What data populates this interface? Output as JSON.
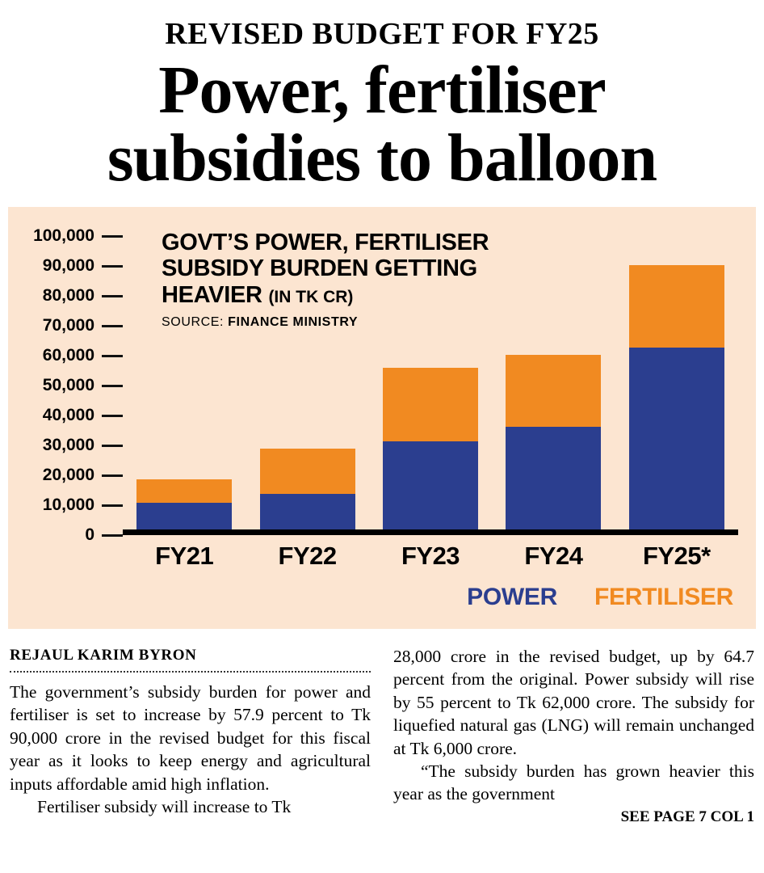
{
  "header": {
    "kicker": "REVISED BUDGET FOR FY25",
    "headline_line1": "Power, fertiliser",
    "headline_line2": "subsidies to balloon"
  },
  "chart": {
    "title_line1": "GOVT’S POWER, FERTILISER",
    "title_line2": "SUBSIDY BURDEN GETTING",
    "title_line3": "HEAVIER",
    "title_unit": "(IN TK CR)",
    "source_label": "SOURCE:",
    "source_value": "FINANCE MINISTRY",
    "background_color": "#fce5d1"
  },
  "chart_data": {
    "type": "bar",
    "stacked": true,
    "title": "GOVT’S POWER, FERTILISER SUBSIDY BURDEN GETTING HEAVIER (IN TK CR)",
    "source": "FINANCE MINISTRY",
    "categories": [
      "FY21",
      "FY22",
      "FY23",
      "FY24",
      "FY25*"
    ],
    "series": [
      {
        "name": "POWER",
        "color": "#2b3e8f",
        "values": [
          9000,
          12000,
          30000,
          35000,
          62000
        ]
      },
      {
        "name": "FERTILISER",
        "color": "#f18a21",
        "values": [
          8000,
          15500,
          25000,
          24500,
          28000
        ]
      }
    ],
    "ylim": [
      0,
      100000
    ],
    "ytick_step": 10000,
    "ytick_labels": [
      "0",
      "10,000",
      "20,000",
      "30,000",
      "40,000",
      "50,000",
      "60,000",
      "70,000",
      "80,000",
      "90,000",
      "100,000"
    ],
    "legend_position": "bottom-right",
    "grid": false
  },
  "article": {
    "byline": "REJAUL KARIM BYRON",
    "col1_p1": "The government’s subsidy burden for power and fertiliser is set to increase by 57.9 percent to Tk 90,000 crore in the revised budget for this fiscal year as it looks to keep energy and agricultural inputs affordable amid high inflation.",
    "col1_p2": "Fertiliser subsidy will increase to Tk",
    "col2_p1": "28,000 crore in the revised budget, up by 64.7 percent from the original. Power subsidy will rise by 55 percent to Tk 62,000 crore. The subsidy for liquefied natural gas (LNG) will remain unchanged at Tk 6,000 crore.",
    "col2_p2": "“The subsidy burden has grown heavier this year as the government",
    "continuation": "SEE PAGE 7 COL 1"
  }
}
